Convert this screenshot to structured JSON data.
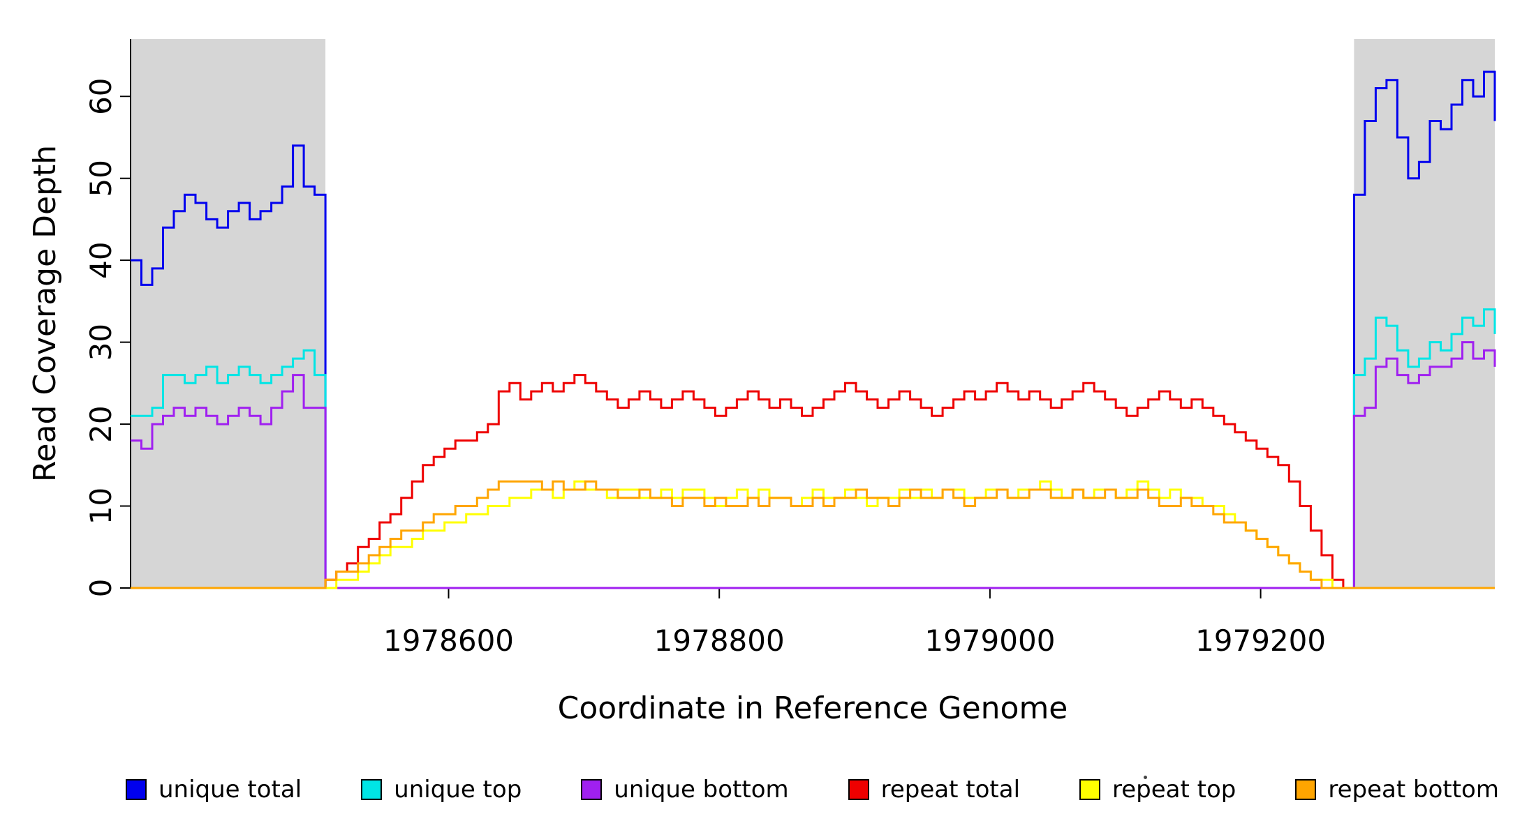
{
  "chart_data": {
    "type": "line",
    "title": "",
    "xlabel": "Coordinate in Reference Genome",
    "ylabel": "Read Coverage Depth",
    "xlim": [
      1978365,
      1979373
    ],
    "ylim": [
      0,
      67
    ],
    "xticks": [
      1978600,
      1978800,
      1979000,
      1979200
    ],
    "yticks": [
      0,
      10,
      20,
      30,
      40,
      50,
      60
    ],
    "grid": false,
    "legend_position": "bottom",
    "line_style": "step",
    "x_start": 1978365,
    "x_step": 8,
    "shaded_regions": [
      {
        "x0": 1978365,
        "x1": 1978509,
        "color": "#d6d6d6"
      },
      {
        "x0": 1979269,
        "x1": 1979373,
        "color": "#d6d6d6"
      }
    ],
    "series": [
      {
        "name": "unique total",
        "color": "#0000ee",
        "values": [
          40,
          37,
          39,
          44,
          46,
          48,
          47,
          45,
          44,
          46,
          47,
          45,
          46,
          47,
          49,
          54,
          49,
          48,
          0,
          0,
          0,
          0,
          0,
          0,
          0,
          0,
          0,
          0,
          0,
          0,
          0,
          0,
          0,
          0,
          0,
          0,
          0,
          0,
          0,
          0,
          0,
          0,
          0,
          0,
          0,
          0,
          0,
          0,
          0,
          0,
          0,
          0,
          0,
          0,
          0,
          0,
          0,
          0,
          0,
          0,
          0,
          0,
          0,
          0,
          0,
          0,
          0,
          0,
          0,
          0,
          0,
          0,
          0,
          0,
          0,
          0,
          0,
          0,
          0,
          0,
          0,
          0,
          0,
          0,
          0,
          0,
          0,
          0,
          0,
          0,
          0,
          0,
          0,
          0,
          0,
          0,
          0,
          0,
          0,
          0,
          0,
          0,
          0,
          0,
          0,
          0,
          0,
          0,
          0,
          0,
          0,
          0,
          0,
          48,
          57,
          61,
          62,
          55,
          50,
          52,
          57,
          56,
          59,
          62,
          60,
          63,
          57
        ]
      },
      {
        "name": "unique top",
        "color": "#00e5e5",
        "values": [
          21,
          21,
          22,
          26,
          26,
          25,
          26,
          27,
          25,
          26,
          27,
          26,
          25,
          26,
          27,
          28,
          29,
          26,
          0,
          0,
          0,
          0,
          0,
          0,
          0,
          0,
          0,
          0,
          0,
          0,
          0,
          0,
          0,
          0,
          0,
          0,
          0,
          0,
          0,
          0,
          0,
          0,
          0,
          0,
          0,
          0,
          0,
          0,
          0,
          0,
          0,
          0,
          0,
          0,
          0,
          0,
          0,
          0,
          0,
          0,
          0,
          0,
          0,
          0,
          0,
          0,
          0,
          0,
          0,
          0,
          0,
          0,
          0,
          0,
          0,
          0,
          0,
          0,
          0,
          0,
          0,
          0,
          0,
          0,
          0,
          0,
          0,
          0,
          0,
          0,
          0,
          0,
          0,
          0,
          0,
          0,
          0,
          0,
          0,
          0,
          0,
          0,
          0,
          0,
          0,
          0,
          0,
          0,
          0,
          0,
          0,
          0,
          0,
          26,
          28,
          33,
          32,
          29,
          27,
          28,
          30,
          29,
          31,
          33,
          32,
          34,
          31
        ]
      },
      {
        "name": "unique bottom",
        "color": "#a020f0",
        "values": [
          18,
          17,
          20,
          21,
          22,
          21,
          22,
          21,
          20,
          21,
          22,
          21,
          20,
          22,
          24,
          26,
          22,
          22,
          0,
          0,
          0,
          0,
          0,
          0,
          0,
          0,
          0,
          0,
          0,
          0,
          0,
          0,
          0,
          0,
          0,
          0,
          0,
          0,
          0,
          0,
          0,
          0,
          0,
          0,
          0,
          0,
          0,
          0,
          0,
          0,
          0,
          0,
          0,
          0,
          0,
          0,
          0,
          0,
          0,
          0,
          0,
          0,
          0,
          0,
          0,
          0,
          0,
          0,
          0,
          0,
          0,
          0,
          0,
          0,
          0,
          0,
          0,
          0,
          0,
          0,
          0,
          0,
          0,
          0,
          0,
          0,
          0,
          0,
          0,
          0,
          0,
          0,
          0,
          0,
          0,
          0,
          0,
          0,
          0,
          0,
          0,
          0,
          0,
          0,
          0,
          0,
          0,
          0,
          0,
          0,
          0,
          0,
          0,
          21,
          22,
          27,
          28,
          26,
          25,
          26,
          27,
          27,
          28,
          30,
          28,
          29,
          27
        ]
      },
      {
        "name": "repeat total",
        "color": "#ee0000",
        "values": [
          0,
          0,
          0,
          0,
          0,
          0,
          0,
          0,
          0,
          0,
          0,
          0,
          0,
          0,
          0,
          0,
          0,
          0,
          1,
          2,
          3,
          5,
          6,
          8,
          9,
          11,
          13,
          15,
          16,
          17,
          18,
          18,
          19,
          20,
          24,
          25,
          23,
          24,
          25,
          24,
          25,
          26,
          25,
          24,
          23,
          22,
          23,
          24,
          23,
          22,
          23,
          24,
          23,
          22,
          21,
          22,
          23,
          24,
          23,
          22,
          23,
          22,
          21,
          22,
          23,
          24,
          25,
          24,
          23,
          22,
          23,
          24,
          23,
          22,
          21,
          22,
          23,
          24,
          23,
          24,
          25,
          24,
          23,
          24,
          23,
          22,
          23,
          24,
          25,
          24,
          23,
          22,
          21,
          22,
          23,
          24,
          23,
          22,
          23,
          22,
          21,
          20,
          19,
          18,
          17,
          16,
          15,
          13,
          10,
          7,
          4,
          1,
          0,
          0,
          0,
          0,
          0,
          0,
          0,
          0,
          0,
          0,
          0,
          0,
          0,
          0,
          0
        ]
      },
      {
        "name": "repeat top",
        "color": "#ffff00",
        "values": [
          0,
          0,
          0,
          0,
          0,
          0,
          0,
          0,
          0,
          0,
          0,
          0,
          0,
          0,
          0,
          0,
          0,
          0,
          0,
          1,
          1,
          2,
          3,
          4,
          5,
          5,
          6,
          7,
          7,
          8,
          8,
          9,
          9,
          10,
          10,
          11,
          11,
          12,
          12,
          11,
          12,
          13,
          12,
          12,
          11,
          12,
          12,
          11,
          11,
          12,
          11,
          12,
          12,
          11,
          10,
          11,
          12,
          11,
          12,
          11,
          11,
          10,
          11,
          12,
          11,
          11,
          12,
          11,
          10,
          11,
          11,
          12,
          11,
          12,
          11,
          12,
          12,
          11,
          11,
          12,
          12,
          11,
          12,
          12,
          13,
          12,
          11,
          12,
          11,
          12,
          12,
          11,
          12,
          13,
          12,
          11,
          12,
          11,
          11,
          10,
          10,
          9,
          8,
          7,
          6,
          5,
          4,
          3,
          2,
          1,
          1,
          0,
          0,
          0,
          0,
          0,
          0,
          0,
          0,
          0,
          0,
          0,
          0,
          0,
          0,
          0,
          0
        ]
      },
      {
        "name": "repeat bottom",
        "color": "#ffa500",
        "values": [
          0,
          0,
          0,
          0,
          0,
          0,
          0,
          0,
          0,
          0,
          0,
          0,
          0,
          0,
          0,
          0,
          0,
          0,
          1,
          2,
          2,
          3,
          4,
          5,
          6,
          7,
          7,
          8,
          9,
          9,
          10,
          10,
          11,
          12,
          13,
          13,
          13,
          13,
          12,
          13,
          12,
          12,
          13,
          12,
          12,
          11,
          11,
          12,
          11,
          11,
          10,
          11,
          11,
          10,
          11,
          10,
          10,
          11,
          10,
          11,
          11,
          10,
          10,
          11,
          10,
          11,
          11,
          12,
          11,
          11,
          10,
          11,
          12,
          11,
          11,
          12,
          11,
          10,
          11,
          11,
          12,
          11,
          11,
          12,
          12,
          11,
          11,
          12,
          11,
          11,
          12,
          11,
          11,
          12,
          11,
          10,
          10,
          11,
          10,
          10,
          9,
          8,
          8,
          7,
          6,
          5,
          4,
          3,
          2,
          1,
          0,
          0,
          0,
          0,
          0,
          0,
          0,
          0,
          0,
          0,
          0,
          0,
          0,
          0,
          0,
          0,
          0
        ]
      }
    ]
  },
  "colors": {
    "background": "#ffffff",
    "axis": "#000000",
    "shaded_region": "#d6d6d6"
  }
}
